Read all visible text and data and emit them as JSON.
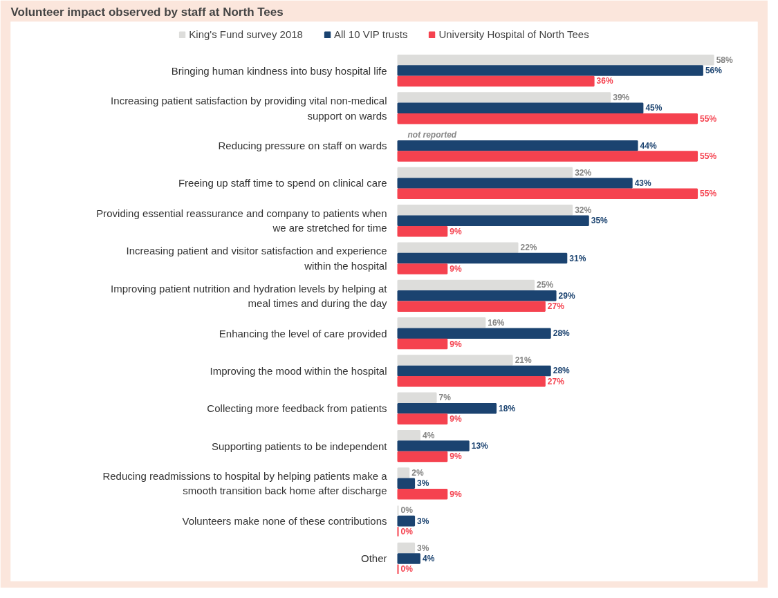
{
  "chart_data": {
    "type": "bar",
    "orientation": "horizontal",
    "title": "Volunteer impact observed by staff at North Tees",
    "legend": "top",
    "categories": [
      "Bringing human kindness into busy hospital life",
      "Increasing patient satisfaction by providing vital non-medical support on wards",
      "Reducing pressure on staff on wards",
      "Freeing up staff time to spend on clinical care",
      "Providing essential reassurance and company to patients when we are stretched for time",
      "Increasing patient and visitor satisfaction and experience within the hospital",
      "Improving patient nutrition and hydration levels by helping at meal times and during the day",
      "Enhancing the level of care provided",
      "Improving the mood within the hospital",
      "Collecting more feedback from patients",
      "Supporting patients to be independent",
      "Reducing readmissions to hospital by helping patients make a smooth transition back home after discharge",
      "Volunteers make none of these contributions",
      "Other"
    ],
    "series": [
      {
        "name": "King's Fund survey 2018",
        "color": "#dddddb",
        "values": [
          58,
          39,
          null,
          32,
          32,
          22,
          25,
          16,
          21,
          7,
          4,
          2,
          0,
          3
        ],
        "value_labels": [
          "58%",
          "39%",
          null,
          "32%",
          "32%",
          "22%",
          "25%",
          "16%",
          "21%",
          "7%",
          "4%",
          "2%",
          "0%",
          "3%"
        ]
      },
      {
        "name": "All 10 VIP trusts",
        "color": "#1b4370",
        "values": [
          56,
          45,
          44,
          43,
          35,
          31,
          29,
          28,
          28,
          18,
          13,
          3,
          3,
          4
        ],
        "value_labels": [
          "56%",
          "45%",
          "44%",
          "43%",
          "35%",
          "31%",
          "29%",
          "28%",
          "28%",
          "18%",
          "13%",
          "3%",
          "3%",
          "4%"
        ]
      },
      {
        "name": "University Hospital of North Tees",
        "color": "#f5424f",
        "values": [
          36,
          55,
          55,
          55,
          9,
          9,
          27,
          9,
          27,
          9,
          9,
          9,
          0,
          0
        ],
        "value_labels": [
          "36%",
          "55%",
          "55%",
          "55%",
          "9%",
          "9%",
          "27%",
          "9%",
          "27%",
          "9%",
          "9%",
          "9%",
          "0%",
          "0%"
        ]
      }
    ],
    "annotations": [
      {
        "text": "not reported",
        "x": 0,
        "y": "Reducing pressure on staff on wards"
      }
    ]
  }
}
